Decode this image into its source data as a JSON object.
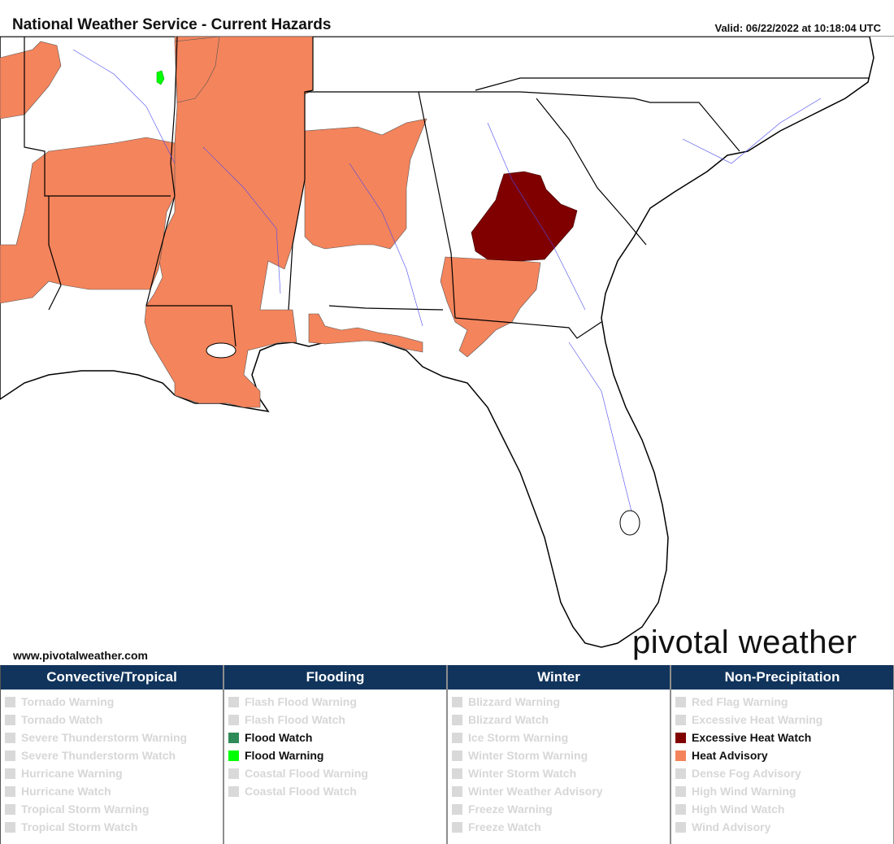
{
  "header": {
    "title": "National Weather Service - Current Hazards",
    "valid": "Valid: 06/22/2022 at 10:18:04 UTC"
  },
  "map": {
    "website": "www.pivotalweather.com",
    "logo": "pivotal weather",
    "colors": {
      "heat_advisory": "#f4845c",
      "excessive_heat_watch": "#800000",
      "flood_warning": "#00ff00",
      "flood_watch": "#2e8b57",
      "border": "#000000",
      "county_line": "#9a9a9a",
      "river": "#4a4af0",
      "land": "#ffffff",
      "water": "#ffffff"
    }
  },
  "legend": {
    "columns": [
      {
        "header": "Convective/Tropical",
        "items": [
          {
            "label": "Tornado Warning",
            "active": false,
            "color": "#d9d9d9"
          },
          {
            "label": "Tornado Watch",
            "active": false,
            "color": "#d9d9d9"
          },
          {
            "label": "Severe Thunderstorm Warning",
            "active": false,
            "color": "#d9d9d9"
          },
          {
            "label": "Severe Thunderstorm Watch",
            "active": false,
            "color": "#d9d9d9"
          },
          {
            "label": "Hurricane Warning",
            "active": false,
            "color": "#d9d9d9"
          },
          {
            "label": "Hurricane Watch",
            "active": false,
            "color": "#d9d9d9"
          },
          {
            "label": "Tropical Storm Warning",
            "active": false,
            "color": "#d9d9d9"
          },
          {
            "label": "Tropical Storm Watch",
            "active": false,
            "color": "#d9d9d9"
          }
        ]
      },
      {
        "header": "Flooding",
        "items": [
          {
            "label": "Flash Flood Warning",
            "active": false,
            "color": "#d9d9d9"
          },
          {
            "label": "Flash Flood Watch",
            "active": false,
            "color": "#d9d9d9"
          },
          {
            "label": "Flood Watch",
            "active": true,
            "color": "#2e8b57"
          },
          {
            "label": "Flood Warning",
            "active": true,
            "color": "#00ff00"
          },
          {
            "label": "Coastal Flood Warning",
            "active": false,
            "color": "#d9d9d9"
          },
          {
            "label": "Coastal Flood Watch",
            "active": false,
            "color": "#d9d9d9"
          }
        ]
      },
      {
        "header": "Winter",
        "items": [
          {
            "label": "Blizzard Warning",
            "active": false,
            "color": "#d9d9d9"
          },
          {
            "label": "Blizzard Watch",
            "active": false,
            "color": "#d9d9d9"
          },
          {
            "label": "Ice Storm Warning",
            "active": false,
            "color": "#d9d9d9"
          },
          {
            "label": "Winter Storm Warning",
            "active": false,
            "color": "#d9d9d9"
          },
          {
            "label": "Winter Storm Watch",
            "active": false,
            "color": "#d9d9d9"
          },
          {
            "label": "Winter Weather Advisory",
            "active": false,
            "color": "#d9d9d9"
          },
          {
            "label": "Freeze Warning",
            "active": false,
            "color": "#d9d9d9"
          },
          {
            "label": "Freeze Watch",
            "active": false,
            "color": "#d9d9d9"
          }
        ]
      },
      {
        "header": "Non-Precipitation",
        "items": [
          {
            "label": "Red Flag Warning",
            "active": false,
            "color": "#d9d9d9"
          },
          {
            "label": "Excessive Heat Warning",
            "active": false,
            "color": "#d9d9d9"
          },
          {
            "label": "Excessive Heat Watch",
            "active": true,
            "color": "#800000"
          },
          {
            "label": "Heat Advisory",
            "active": true,
            "color": "#f4845c"
          },
          {
            "label": "Dense Fog Advisory",
            "active": false,
            "color": "#d9d9d9"
          },
          {
            "label": "High Wind Warning",
            "active": false,
            "color": "#d9d9d9"
          },
          {
            "label": "High Wind Watch",
            "active": false,
            "color": "#d9d9d9"
          },
          {
            "label": "Wind Advisory",
            "active": false,
            "color": "#d9d9d9"
          }
        ]
      }
    ]
  }
}
